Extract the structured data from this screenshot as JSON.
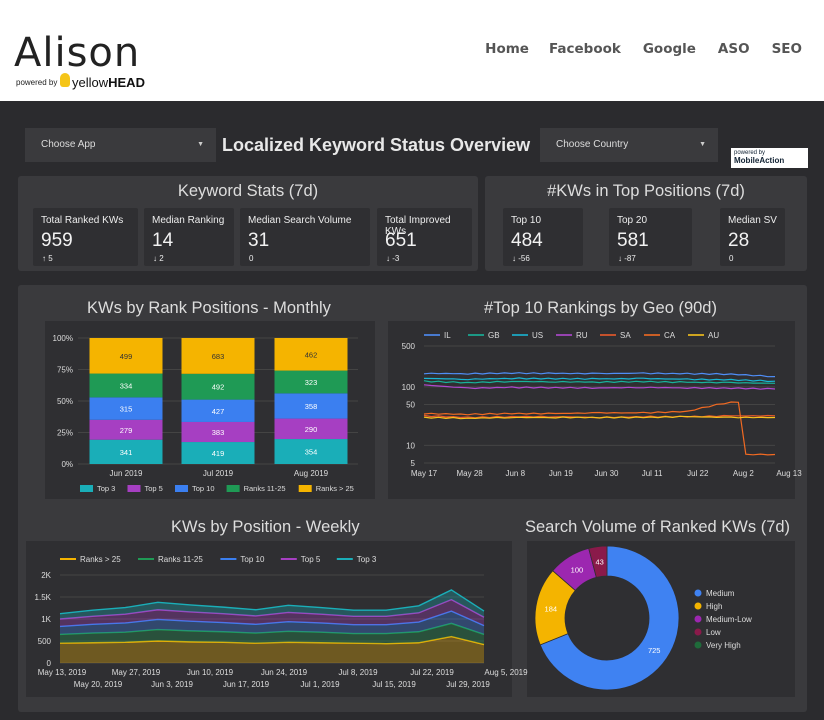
{
  "header": {
    "logo_text": "Alison",
    "powered_by": "powered by",
    "brand_light": "yellow",
    "brand_bold": "HEAD",
    "nav": [
      "Home",
      "Facebook",
      "Google",
      "ASO",
      "SEO"
    ]
  },
  "controls": {
    "choose_app": "Choose App",
    "choose_country": "Choose Country",
    "page_title": "Localized Keyword Status Overview",
    "powered_by_small": "powered by",
    "mobileaction": "MobileAction"
  },
  "keyword_stats": {
    "title": "Keyword Stats (7d)",
    "cards": [
      {
        "label": "Total Ranked KWs",
        "value": "959",
        "delta": "5",
        "dir": "up"
      },
      {
        "label": "Median Ranking",
        "value": "14",
        "delta": "2",
        "dir": "down"
      },
      {
        "label": "Median Search Volume",
        "value": "31",
        "delta": "0",
        "dir": "none"
      },
      {
        "label": "Total Improved KWs",
        "value": "651",
        "delta": "-3",
        "dir": "down"
      }
    ]
  },
  "top_positions": {
    "title": "#KWs in Top Positions (7d)",
    "cards": [
      {
        "label": "Top 10",
        "value": "484",
        "delta": "-56",
        "dir": "down"
      },
      {
        "label": "Top 20",
        "value": "581",
        "delta": "-87",
        "dir": "down"
      },
      {
        "label": "Median SV",
        "value": "28",
        "delta": "0",
        "dir": "none"
      }
    ]
  },
  "colors": {
    "top3": "#1aaeb8",
    "top5": "#a63fc2",
    "top10": "#3b7ff0",
    "ranks11_25": "#1f9a55",
    "ranks25": "#f5b400",
    "IL": "#4f8ef7",
    "GB": "#18b39a",
    "US": "#19b6d4",
    "RU": "#b048d0",
    "SA": "#ea5a2a",
    "CA": "#f26a22",
    "AU": "#f6c21c",
    "medium": "#3f82f2",
    "high": "#f4b400",
    "medium_low": "#9c27b0",
    "low": "#8a1a4a",
    "very_high": "#1f6b3a"
  },
  "chart_data": [
    {
      "id": "monthly",
      "type": "bar",
      "title": "KWs by Rank Positions - Monthly",
      "stacked": "percent",
      "categories": [
        "Jun 2019",
        "Jul 2019",
        "Aug 2019"
      ],
      "yticks": [
        "0%",
        "25%",
        "50%",
        "75%",
        "100%"
      ],
      "series": [
        {
          "name": "Top 3",
          "key": "top3",
          "values": [
            341,
            419,
            354
          ]
        },
        {
          "name": "Top 5",
          "key": "top5",
          "values": [
            279,
            383,
            290
          ]
        },
        {
          "name": "Top 10",
          "key": "top10",
          "values": [
            315,
            427,
            358
          ]
        },
        {
          "name": "Ranks 11-25",
          "key": "ranks11_25",
          "values": [
            334,
            492,
            323
          ]
        },
        {
          "name": "Ranks > 25",
          "key": "ranks25",
          "values": [
            499,
            683,
            462
          ]
        }
      ]
    },
    {
      "id": "geo",
      "type": "line",
      "title": "#Top 10 Rankings by Geo (90d)",
      "yscale": "log",
      "yticks": [
        5,
        10,
        50,
        100,
        500
      ],
      "xticks": [
        "May 17",
        "May 28",
        "Jun 8",
        "Jun 19",
        "Jun 30",
        "Jul 11",
        "Jul 22",
        "Aug 2",
        "Aug 13"
      ],
      "series": [
        {
          "name": "IL",
          "key": "IL",
          "values": [
            170,
            168,
            172,
            170,
            169,
            171,
            168,
            165,
            150
          ]
        },
        {
          "name": "GB",
          "key": "GB",
          "values": [
            125,
            118,
            124,
            122,
            121,
            123,
            120,
            118,
            115
          ]
        },
        {
          "name": "US",
          "key": "US",
          "values": [
            140,
            135,
            140,
            138,
            137,
            139,
            135,
            132,
            125
          ]
        },
        {
          "name": "RU",
          "key": "RU",
          "values": [
            108,
            95,
            98,
            97,
            96,
            98,
            96,
            95,
            92
          ]
        },
        {
          "name": "SA",
          "key": "SA",
          "values": [
            32,
            30,
            31,
            31,
            30,
            31,
            31,
            32,
            32
          ]
        },
        {
          "name": "CA",
          "key": "CA",
          "values": [
            35,
            34,
            35,
            35,
            36,
            36,
            38,
            55,
            7
          ]
        },
        {
          "name": "AU",
          "key": "AU",
          "values": [
            30,
            29,
            30,
            30,
            30,
            30,
            31,
            30,
            30
          ]
        }
      ]
    },
    {
      "id": "weekly",
      "type": "area",
      "title": "KWs by Position - Weekly",
      "stacked": true,
      "yticks": [
        "0",
        "500",
        "1K",
        "1.5K",
        "2K"
      ],
      "xticks_top": [
        "May 13, 2019",
        "May 27, 2019",
        "Jun 10, 2019",
        "Jun 24, 2019",
        "Jul 8, 2019",
        "Jul 22, 2019",
        "Aug 5, 2019"
      ],
      "xticks_bottom": [
        "May 20, 2019",
        "Jun 3, 2019",
        "Jun 17, 2019",
        "Jul 1, 2019",
        "Jul 15, 2019",
        "Jul 29, 2019"
      ],
      "series": [
        {
          "name": "Ranks > 25",
          "key": "ranks25",
          "values": [
            450,
            460,
            470,
            500,
            480,
            470,
            450,
            470,
            460,
            450,
            440,
            460,
            600,
            420
          ]
        },
        {
          "name": "Ranks 11-25",
          "key": "ranks11_25",
          "values": [
            200,
            220,
            230,
            260,
            250,
            240,
            230,
            250,
            240,
            220,
            230,
            250,
            300,
            230
          ]
        },
        {
          "name": "Top 10",
          "key": "top10",
          "values": [
            180,
            200,
            210,
            230,
            220,
            210,
            200,
            220,
            210,
            200,
            200,
            220,
            280,
            200
          ]
        },
        {
          "name": "Top 5",
          "key": "top5",
          "values": [
            170,
            180,
            200,
            220,
            210,
            200,
            190,
            210,
            200,
            190,
            190,
            210,
            260,
            190
          ]
        },
        {
          "name": "Top 3",
          "key": "top3",
          "values": [
            120,
            140,
            150,
            170,
            160,
            150,
            140,
            160,
            150,
            140,
            140,
            160,
            220,
            140
          ]
        }
      ]
    },
    {
      "id": "sv",
      "type": "pie",
      "title": "Search Volume of Ranked KWs (7d)",
      "donut": true,
      "slices": [
        {
          "name": "Medium",
          "key": "medium",
          "value": 725
        },
        {
          "name": "High",
          "key": "high",
          "value": 184
        },
        {
          "name": "Medium-Low",
          "key": "medium_low",
          "value": 100
        },
        {
          "name": "Low",
          "key": "low",
          "value": 43
        },
        {
          "name": "Very High",
          "key": "very_high",
          "value": 0
        }
      ]
    }
  ]
}
